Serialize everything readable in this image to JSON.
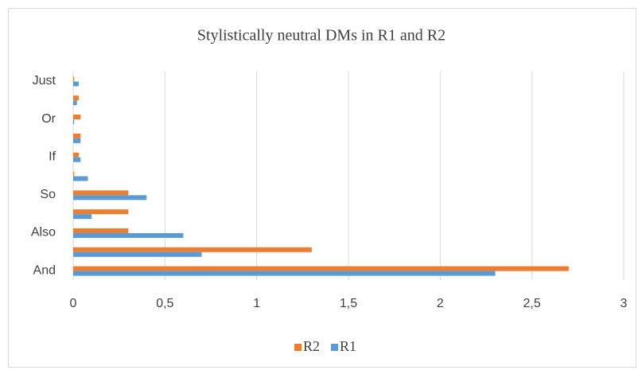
{
  "chart_data": {
    "type": "hbar",
    "title": "Stylistically neutral DMs in R1 and R2",
    "categories": [
      "And",
      null,
      "Also",
      null,
      "So",
      null,
      "If",
      null,
      "Or",
      null,
      "Just"
    ],
    "series": [
      {
        "name": "R2",
        "color": "#ed7d31",
        "values": [
          2.7,
          1.3,
          0.3,
          0.3,
          0.3,
          0.005,
          0.03,
          0.04,
          0.04,
          0.03,
          0.005
        ]
      },
      {
        "name": "R1",
        "color": "#5b9bd5",
        "values": [
          2.3,
          0.7,
          0.6,
          0.1,
          0.4,
          0.08,
          0.04,
          0.04,
          0.005,
          0.02,
          0.03
        ]
      }
    ],
    "xlim": [
      0,
      3
    ],
    "xticks": [
      0,
      {
        "value": 0.5,
        "label": "0,5"
      },
      1,
      {
        "value": 1.5,
        "label": "1,5"
      },
      2,
      {
        "value": 2.5,
        "label": "2,5"
      },
      3
    ],
    "grid": true,
    "legend": "bottom"
  }
}
